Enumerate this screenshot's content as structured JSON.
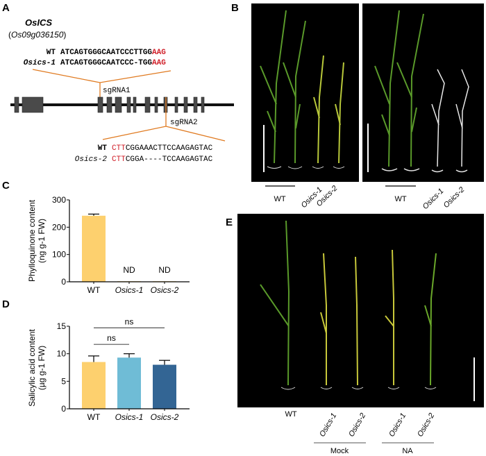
{
  "panels": {
    "a": "A",
    "b": "B",
    "c": "C",
    "d": "D",
    "e": "E"
  },
  "panel_a": {
    "gene": "OsICS",
    "gene_id_open": "(",
    "gene_id": "Os09g036150",
    "gene_id_close": ")",
    "sgrna1": "sgRNA1",
    "sgrna2": "sgRNA2",
    "seq1": {
      "wt_label": "WT",
      "wt_seq": "ATCAGTGGGCAATCCCTTGG",
      "wt_pam": "AAG",
      "mut_label": "Osics-1",
      "mut_seq": "ATCAGTGGGCAATCCC-TGG",
      "mut_pam": "AAG"
    },
    "seq2": {
      "wt_label": "WT",
      "wt_pam": "CTT",
      "wt_seq": "CGGAAACTTCCAAGAGTAC",
      "mut_label": "Osics-2",
      "mut_pam": "CTT",
      "mut_seq": "CGGA----TCCAAGAGTAC"
    },
    "pam_color": "#d0202a",
    "guide_color": "#e07a20"
  },
  "panel_b": {
    "left": {
      "wt": "WT",
      "m1": "Osics-1",
      "m2": "Osics-2"
    },
    "right": {
      "wt": "WT",
      "m1": "Osics-1",
      "m2": "Osics-2"
    }
  },
  "panel_e": {
    "wt": "WT",
    "m1a": "Osics-1",
    "m2a": "Osics-2",
    "m1b": "Osics-1",
    "m2b": "Osics-2",
    "group1": "Mock",
    "group2": "NA"
  },
  "chart_data": [
    {
      "type": "bar",
      "panel": "C",
      "categories": [
        "WT",
        "Osics-1",
        "Osics-2"
      ],
      "values": [
        242,
        2,
        2
      ],
      "errors": [
        6,
        0,
        0
      ],
      "bar_labels": [
        "",
        "ND",
        "ND"
      ],
      "ylabel_line1": "Phylloquinone content",
      "ylabel_line2": "(ng g-1 FW)",
      "ylim": [
        0,
        300
      ],
      "yticks": [
        "0",
        "100",
        "200",
        "300"
      ],
      "colors": [
        "#fdd06e",
        "#fdd06e",
        "#fdd06e"
      ]
    },
    {
      "type": "bar",
      "panel": "D",
      "categories": [
        "WT",
        "Osics-1",
        "Osics-2"
      ],
      "values": [
        8.5,
        9.3,
        8.0
      ],
      "errors": [
        1.1,
        0.7,
        0.8
      ],
      "ylabel_line1": "Salicylic acid content",
      "ylabel_line2": "(µg g-1 FW)",
      "ylim": [
        0,
        15
      ],
      "yticks": [
        "0",
        "5",
        "10",
        "15"
      ],
      "colors": [
        "#fdd06e",
        "#6fbcd6",
        "#336594"
      ],
      "significance": [
        {
          "pair": [
            "WT",
            "Osics-1"
          ],
          "label": "ns"
        },
        {
          "pair": [
            "WT",
            "Osics-2"
          ],
          "label": "ns"
        }
      ]
    }
  ]
}
